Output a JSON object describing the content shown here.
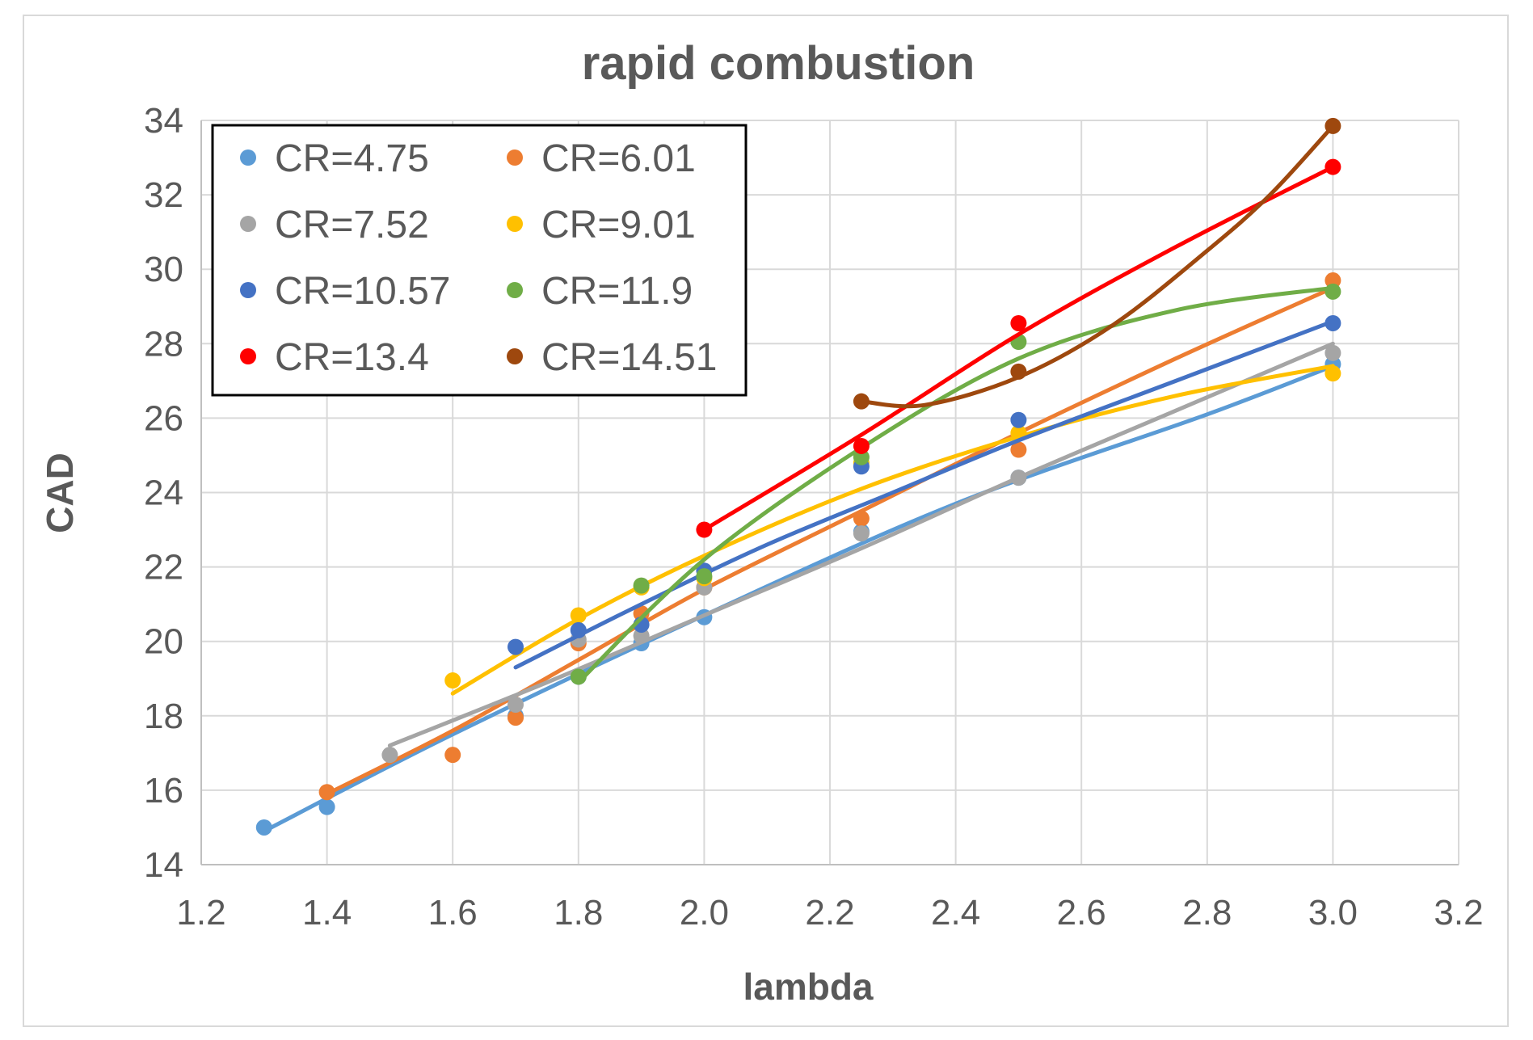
{
  "chart_data": {
    "type": "scatter",
    "title": "rapid combustion",
    "xlabel": "lambda",
    "ylabel": "CAD",
    "xlim": [
      1.2,
      3.2
    ],
    "ylim": [
      14,
      34
    ],
    "xticks": [
      "1.2",
      "1.4",
      "1.6",
      "1.8",
      "2.0",
      "2.2",
      "2.4",
      "2.6",
      "2.8",
      "3.0",
      "3.2"
    ],
    "yticks": [
      "14",
      "16",
      "18",
      "20",
      "22",
      "24",
      "26",
      "28",
      "30",
      "32",
      "34"
    ],
    "grid": true,
    "legend_position": "top-left",
    "series": [
      {
        "name": "CR=4.75",
        "color": "#5b9bd5",
        "points": [
          [
            1.3,
            15.0
          ],
          [
            1.4,
            15.55
          ],
          [
            1.7,
            18.0
          ],
          [
            1.8,
            19.05
          ],
          [
            1.9,
            19.95
          ],
          [
            2.0,
            20.65
          ],
          [
            2.25,
            22.95
          ],
          [
            2.5,
            24.4
          ],
          [
            3.0,
            27.45
          ]
        ],
        "trend": [
          [
            1.3,
            14.9
          ],
          [
            1.6,
            17.5
          ],
          [
            2.0,
            20.7
          ],
          [
            2.4,
            23.7
          ],
          [
            2.8,
            26.1
          ],
          [
            3.0,
            27.4
          ]
        ]
      },
      {
        "name": "CR=6.01",
        "color": "#ed7d31",
        "points": [
          [
            1.4,
            15.95
          ],
          [
            1.6,
            16.95
          ],
          [
            1.7,
            17.95
          ],
          [
            1.8,
            19.95
          ],
          [
            1.9,
            20.75
          ],
          [
            2.0,
            21.45
          ],
          [
            2.25,
            23.3
          ],
          [
            2.5,
            25.15
          ],
          [
            3.0,
            29.7
          ]
        ],
        "trend": [
          [
            1.4,
            15.9
          ],
          [
            1.6,
            17.6
          ],
          [
            1.8,
            19.5
          ],
          [
            2.0,
            21.4
          ],
          [
            2.25,
            23.5
          ],
          [
            2.5,
            25.6
          ],
          [
            2.75,
            27.6
          ],
          [
            3.0,
            29.5
          ]
        ]
      },
      {
        "name": "CR=7.52",
        "color": "#a5a5a5",
        "points": [
          [
            1.5,
            16.95
          ],
          [
            1.7,
            18.3
          ],
          [
            1.8,
            20.05
          ],
          [
            1.9,
            20.15
          ],
          [
            2.0,
            21.45
          ],
          [
            2.25,
            22.9
          ],
          [
            2.5,
            24.4
          ],
          [
            3.0,
            27.75
          ]
        ],
        "trend": [
          [
            1.5,
            17.2
          ],
          [
            1.75,
            18.9
          ],
          [
            2.0,
            20.7
          ],
          [
            2.25,
            22.5
          ],
          [
            2.5,
            24.4
          ],
          [
            2.75,
            26.2
          ],
          [
            3.0,
            28.0
          ]
        ]
      },
      {
        "name": "CR=9.01",
        "color": "#ffc000",
        "points": [
          [
            1.6,
            18.95
          ],
          [
            1.8,
            20.7
          ],
          [
            1.9,
            21.45
          ],
          [
            2.0,
            21.7
          ],
          [
            2.25,
            24.8
          ],
          [
            2.5,
            25.6
          ],
          [
            3.0,
            27.2
          ]
        ],
        "trend": [
          [
            1.6,
            18.6
          ],
          [
            1.8,
            20.6
          ],
          [
            2.0,
            22.3
          ],
          [
            2.25,
            24.1
          ],
          [
            2.5,
            25.5
          ],
          [
            2.75,
            26.6
          ],
          [
            3.0,
            27.4
          ]
        ]
      },
      {
        "name": "CR=10.57",
        "color": "#4472c4",
        "points": [
          [
            1.7,
            19.85
          ],
          [
            1.8,
            20.3
          ],
          [
            1.9,
            20.45
          ],
          [
            2.0,
            21.9
          ],
          [
            2.25,
            24.7
          ],
          [
            2.5,
            25.95
          ],
          [
            3.0,
            28.55
          ]
        ],
        "trend": [
          [
            1.7,
            19.3
          ],
          [
            1.9,
            21.0
          ],
          [
            2.1,
            22.6
          ],
          [
            2.3,
            24.0
          ],
          [
            2.5,
            25.4
          ],
          [
            2.75,
            27.0
          ],
          [
            3.0,
            28.6
          ]
        ]
      },
      {
        "name": "CR=11.9",
        "color": "#70ad47",
        "points": [
          [
            1.8,
            19.05
          ],
          [
            1.9,
            21.5
          ],
          [
            2.0,
            21.75
          ],
          [
            2.25,
            24.95
          ],
          [
            2.5,
            28.05
          ],
          [
            3.0,
            29.4
          ]
        ],
        "trend": [
          [
            1.8,
            18.9
          ],
          [
            2.0,
            22.2
          ],
          [
            2.25,
            25.2
          ],
          [
            2.5,
            27.6
          ],
          [
            2.75,
            28.9
          ],
          [
            3.0,
            29.5
          ]
        ]
      },
      {
        "name": "CR=13.4",
        "color": "#ff0000",
        "points": [
          [
            2.0,
            23.0
          ],
          [
            2.25,
            25.25
          ],
          [
            2.5,
            28.55
          ],
          [
            3.0,
            32.75
          ]
        ],
        "trend": [
          [
            2.0,
            23.0
          ],
          [
            2.25,
            25.55
          ],
          [
            2.5,
            28.25
          ],
          [
            2.75,
            30.6
          ],
          [
            3.0,
            32.75
          ]
        ]
      },
      {
        "name": "CR=14.51",
        "color": "#9e480e",
        "points": [
          [
            2.25,
            26.45
          ],
          [
            2.5,
            27.25
          ],
          [
            3.0,
            33.85
          ]
        ],
        "trend": [
          [
            2.25,
            26.45
          ],
          [
            2.35,
            26.35
          ],
          [
            2.5,
            27.1
          ],
          [
            2.65,
            28.5
          ],
          [
            2.8,
            30.5
          ],
          [
            2.9,
            32.0
          ],
          [
            3.0,
            33.85
          ]
        ]
      }
    ]
  }
}
